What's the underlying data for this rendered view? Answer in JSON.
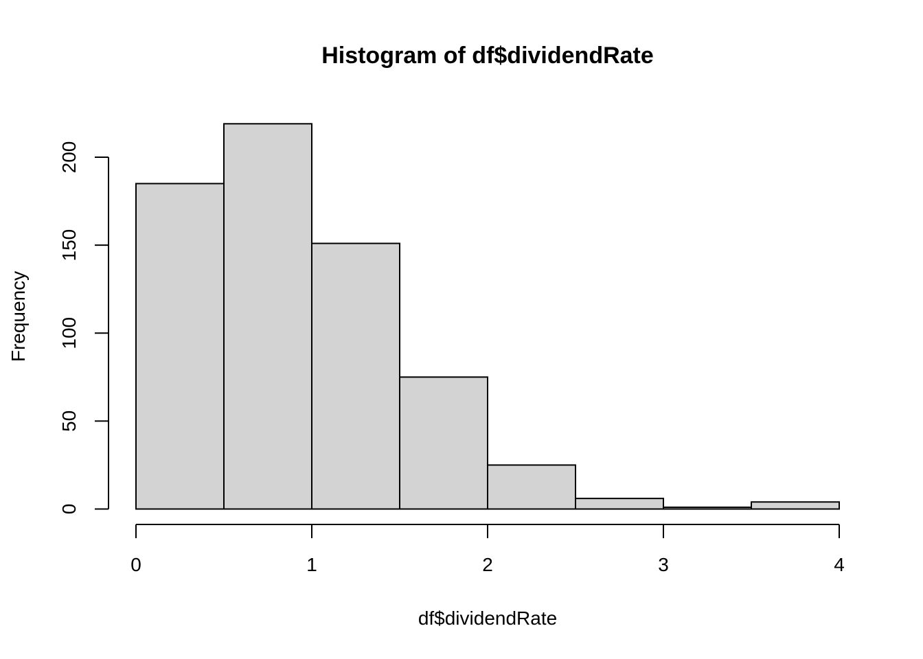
{
  "chart_data": {
    "type": "bar",
    "title": "Histogram of df$dividendRate",
    "xlabel": "df$dividendRate",
    "ylabel": "Frequency",
    "bins": [
      {
        "start": 0.0,
        "end": 0.5,
        "count": 185
      },
      {
        "start": 0.5,
        "end": 1.0,
        "count": 219
      },
      {
        "start": 1.0,
        "end": 1.5,
        "count": 151
      },
      {
        "start": 1.5,
        "end": 2.0,
        "count": 75
      },
      {
        "start": 2.0,
        "end": 2.5,
        "count": 25
      },
      {
        "start": 2.5,
        "end": 3.0,
        "count": 6
      },
      {
        "start": 3.0,
        "end": 3.5,
        "count": 1
      },
      {
        "start": 3.5,
        "end": 4.0,
        "count": 4
      }
    ],
    "xlim": [
      0,
      4
    ],
    "ylim": [
      0,
      200
    ],
    "x_ticks": [
      0,
      1,
      2,
      3,
      4
    ],
    "y_ticks": [
      0,
      50,
      100,
      150,
      200
    ],
    "bar_fill": "#d3d3d3",
    "bar_stroke": "#000000",
    "grid": false,
    "legend": "none"
  }
}
